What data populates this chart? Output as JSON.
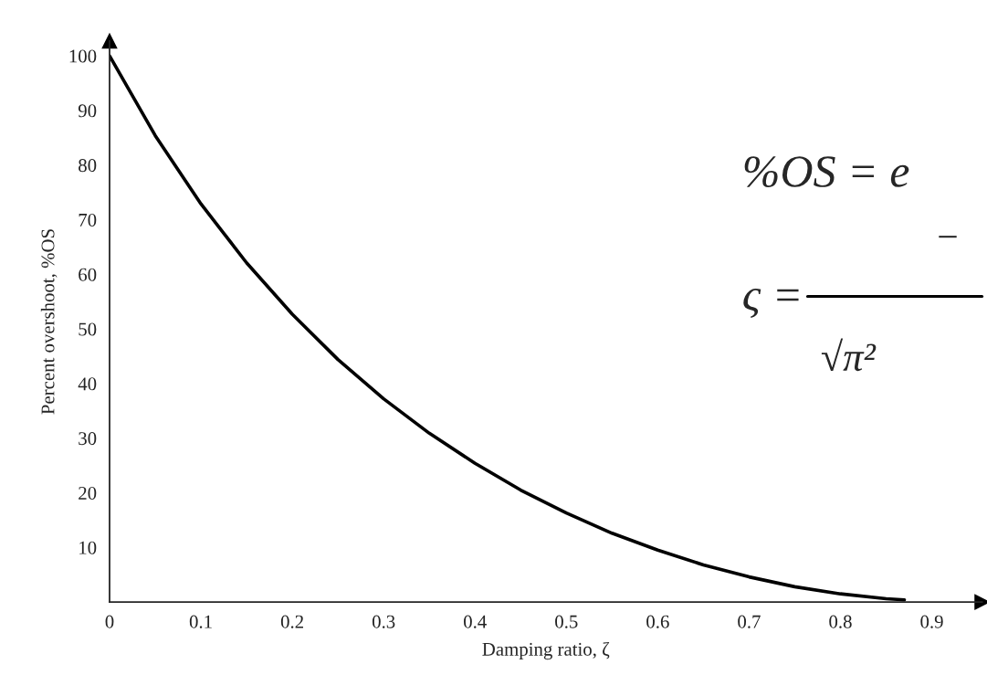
{
  "chart_data": {
    "type": "line",
    "xlabel": "Damping ratio, ζ",
    "ylabel": "Percent overshoot, %OS",
    "x": [
      0,
      0.05,
      0.1,
      0.15,
      0.2,
      0.25,
      0.3,
      0.35,
      0.4,
      0.45,
      0.5,
      0.55,
      0.6,
      0.65,
      0.7,
      0.75,
      0.8,
      0.85,
      0.87
    ],
    "series": [
      {
        "color": "#000000",
        "values": [
          100,
          85.4,
          72.9,
          62.1,
          52.7,
          44.4,
          37.2,
          30.9,
          25.4,
          20.5,
          16.3,
          12.6,
          9.5,
          6.8,
          4.6,
          2.8,
          1.5,
          0.6,
          0.4
        ]
      }
    ],
    "xlim": [
      0,
      0.955
    ],
    "ylim": [
      0,
      102.7
    ],
    "xticks": [
      0,
      0.1,
      0.2,
      0.3,
      0.4,
      0.5,
      0.6,
      0.7,
      0.8,
      0.9
    ],
    "yticks": [
      10,
      20,
      30,
      40,
      50,
      60,
      70,
      80,
      90,
      100
    ],
    "grid": false,
    "legend": false,
    "marker": "none",
    "line_style": "solid",
    "annotations": [
      "%OS = e",
      "ς =",
      "−",
      "√π²"
    ]
  }
}
